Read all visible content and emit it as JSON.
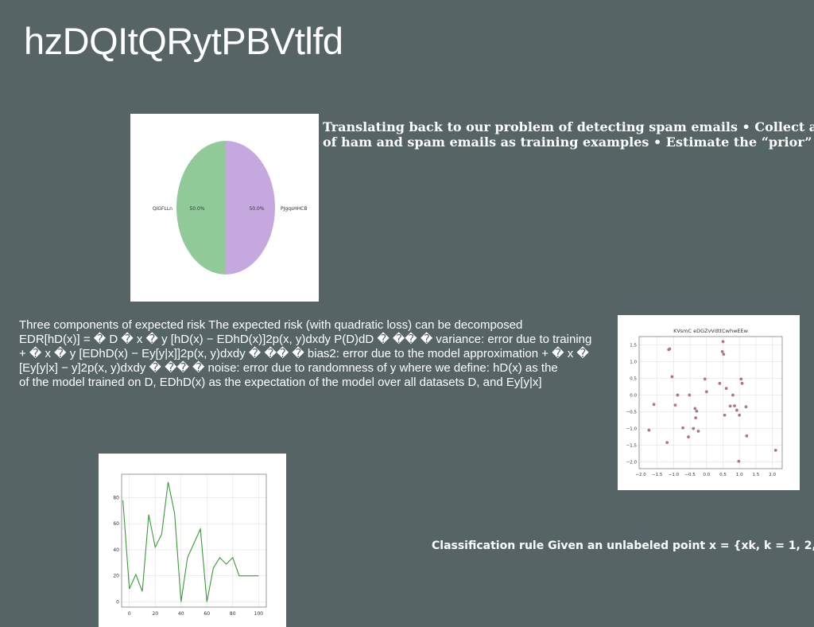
{
  "slide": {
    "title": "hzDQItQRytPBVtlfd",
    "spam_text": {
      "line1": "Translating back to our problem of detecting spam emails • Collect a",
      "line2": "of ham and spam emails as training examples • Estimate the “prior”"
    },
    "risk_text": {
      "line1": "Three components of expected risk The expected risk (with quadratic loss) can be decomposed",
      "line2": "EDR[hD(x)] = � D � x � y [hD(x) − EDhD(x)]2p(x, y)dxdy P(D)dD � �� � variance: error due to training",
      "line3": "+ � x � y [EDhD(x) − Ey[y|x]]2p(x, y)dxdy � �� � bias2: error due to the model approximation + � x �",
      "line4": "[Ey[y|x] − y]2p(x, y)dxdy � �� � noise: error due to randomness of y where we define: hD(x) as the",
      "line5": "of the model trained on D, EDhD(x) as the expectation of the model over all datasets D, and Ey[y|x]"
    },
    "class_text": "Classification rule Given an unlabeled point x = {xk, k = 1, 2, ·"
  },
  "chart_data": [
    {
      "type": "pie",
      "title": "",
      "slices": [
        {
          "label": "QIGFLLn",
          "value": 50.0,
          "pct_label": "50.0%",
          "color": "#8fca98"
        },
        {
          "label": "PJgqsHHCB",
          "value": 50.0,
          "pct_label": "50.0%",
          "color": "#c5a9de"
        }
      ]
    },
    {
      "type": "scatter",
      "title": "KVsmC eDGZvVdttCwhwEEw",
      "xlabel": "",
      "ylabel": "",
      "xlim": [
        -2.05,
        2.3
      ],
      "ylim": [
        -2.2,
        1.75
      ],
      "xticks": [
        -2.0,
        -1.5,
        -1.0,
        -0.5,
        0.0,
        0.5,
        1.0,
        1.5,
        2.0
      ],
      "xtick_labels": [
        "−2.0",
        "−1.5",
        "−1.0",
        "−0.5",
        "0.0",
        "0.5",
        "1.0",
        "1.5",
        "2.0"
      ],
      "yticks": [
        -2.0,
        -1.5,
        -1.0,
        -0.5,
        0.0,
        0.5,
        1.0,
        1.5
      ],
      "ytick_labels": [
        "−2.0",
        "−1.5",
        "−1.0",
        "−0.5",
        "0.0",
        "0.5",
        "1.0",
        "1.5"
      ],
      "grid": true,
      "marker_color": "#b07585",
      "x": [
        -1.75,
        -1.6,
        -1.2,
        -1.15,
        -1.12,
        -1.05,
        -0.95,
        -0.88,
        -0.72,
        -0.55,
        -0.52,
        -0.4,
        -0.35,
        -0.33,
        -0.3,
        -0.25,
        -0.05,
        0.0,
        0.4,
        0.48,
        0.5,
        0.52,
        0.55,
        0.6,
        0.72,
        0.8,
        0.85,
        0.92,
        0.98,
        1.0,
        1.05,
        1.08,
        1.2,
        1.22,
        2.1
      ],
      "y": [
        -1.05,
        -0.28,
        -1.42,
        1.36,
        1.38,
        0.55,
        -0.3,
        0.0,
        -0.98,
        -1.25,
        0.0,
        -1.0,
        -0.4,
        -0.68,
        -0.48,
        -1.08,
        0.48,
        0.1,
        0.35,
        1.3,
        1.6,
        1.22,
        -0.6,
        0.2,
        -0.33,
        0.0,
        -0.32,
        -0.45,
        -1.98,
        -0.6,
        0.48,
        0.35,
        -0.35,
        -1.22,
        -1.65
      ]
    },
    {
      "type": "line",
      "title": "",
      "xlabel": "",
      "ylabel": "",
      "xlim": [
        -6,
        106
      ],
      "ylim": [
        -4,
        98
      ],
      "xticks": [
        0,
        20,
        40,
        60,
        80,
        100
      ],
      "yticks": [
        0,
        20,
        40,
        60,
        80
      ],
      "grid": true,
      "line_color": "#3a9a3a",
      "x": [
        -5,
        0,
        5,
        10,
        15,
        20,
        25,
        30,
        35,
        40,
        45,
        50,
        55,
        60,
        65,
        70,
        75,
        80,
        85,
        90,
        95,
        100
      ],
      "y": [
        78,
        10,
        21,
        8,
        67,
        42,
        52,
        92,
        68,
        0,
        34,
        45,
        56,
        0,
        26,
        34,
        29,
        34,
        20,
        20,
        20,
        20
      ]
    }
  ]
}
